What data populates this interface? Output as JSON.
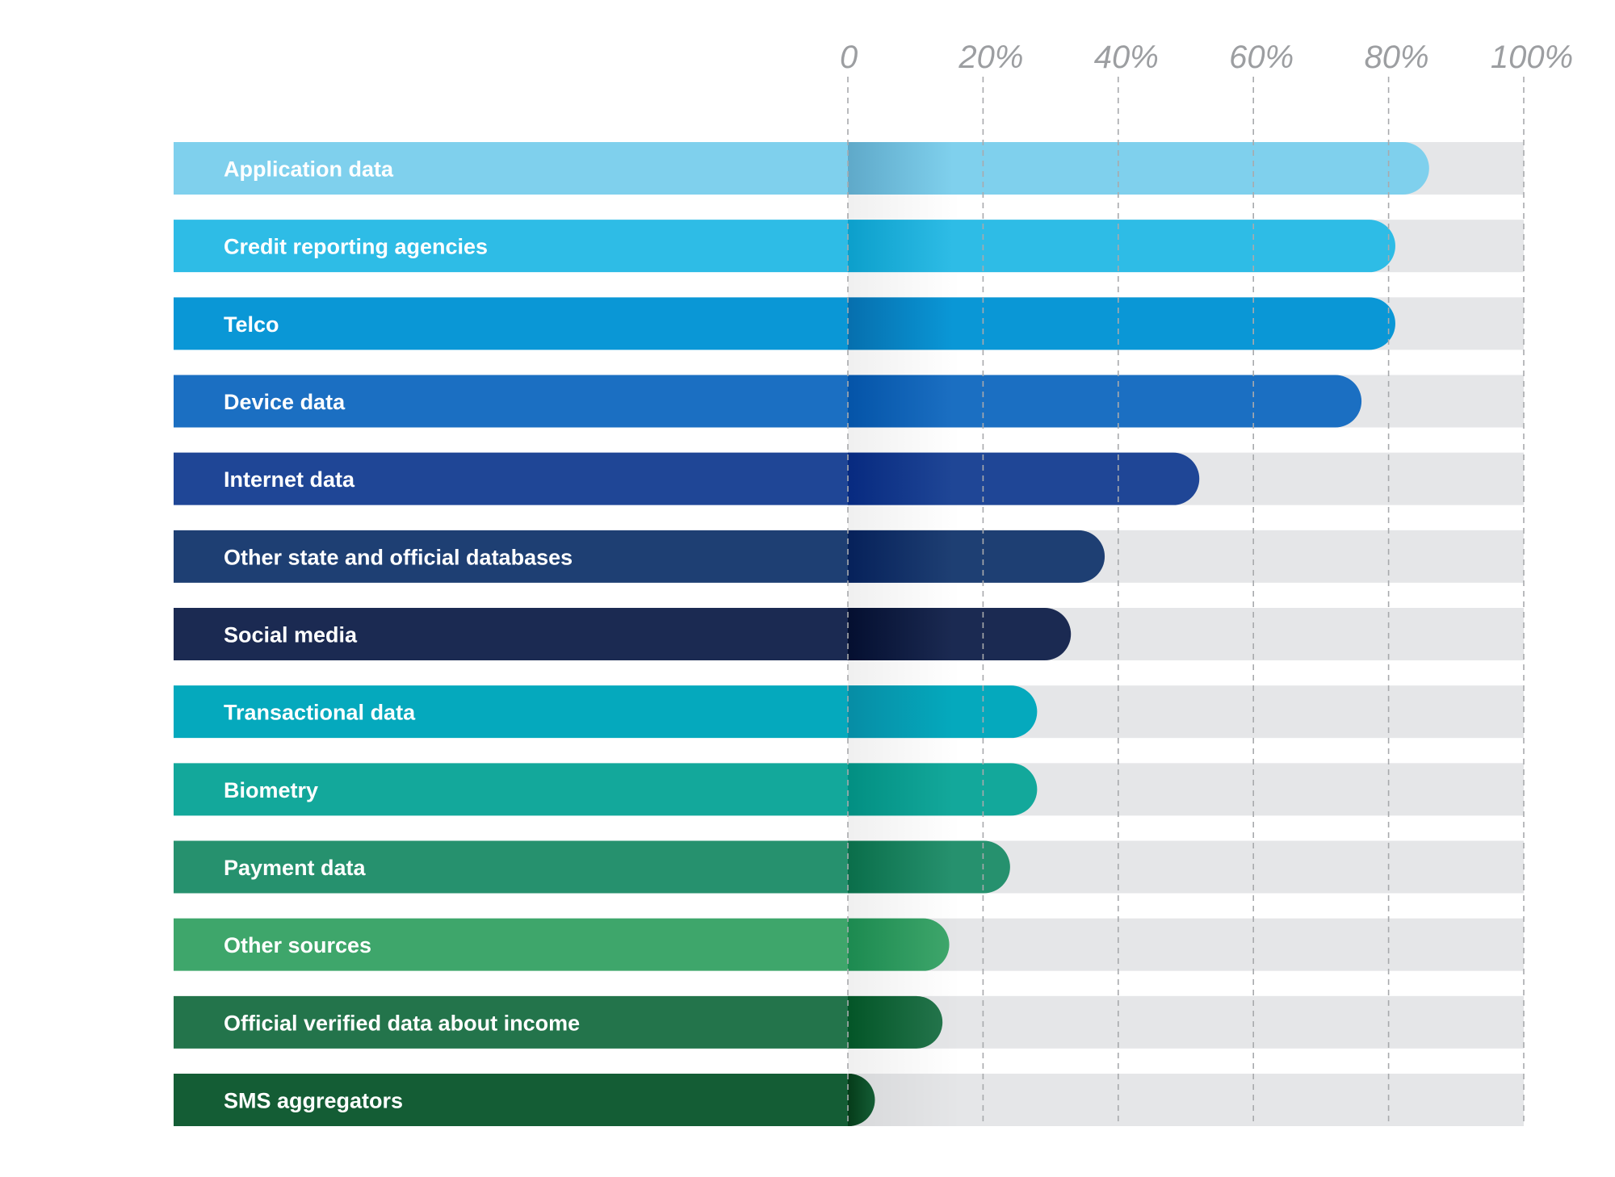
{
  "chart_data": {
    "type": "bar",
    "orientation": "horizontal",
    "title": "",
    "xlabel": "",
    "ylabel": "",
    "xlim": [
      0,
      100
    ],
    "x_ticks": [
      "0",
      "20%",
      "40%",
      "60%",
      "80%",
      "100%"
    ],
    "x_tick_values": [
      0,
      20,
      40,
      60,
      80,
      100
    ],
    "grid": true,
    "categories": [
      "Application data",
      "Credit reporting agencies",
      "Telco",
      "Device data",
      "Internet data",
      "Other state and official databases",
      "Social media",
      "Transactional data",
      "Biometry",
      "Payment data",
      "Other sources",
      "Official verified data about income",
      "SMS aggregators"
    ],
    "values": [
      86,
      81,
      81,
      76,
      52,
      38,
      33,
      28,
      28,
      24,
      15,
      14,
      4
    ],
    "colors": [
      "#7fd0ed",
      "#2ebce6",
      "#0a97d6",
      "#1b6fc2",
      "#1f4696",
      "#1e3f73",
      "#1b2a52",
      "#05a9bd",
      "#13a89b",
      "#26916e",
      "#3ea66b",
      "#23744b",
      "#145d35"
    ],
    "colors_dark": [
      "#5fa9c9",
      "#0c9fcb",
      "#066fae",
      "#0454a8",
      "#072a80",
      "#06215a",
      "#040f30",
      "#068da5",
      "#028f82",
      "#0a6e4a",
      "#1c8a50",
      "#035527",
      "#053b19"
    ]
  }
}
